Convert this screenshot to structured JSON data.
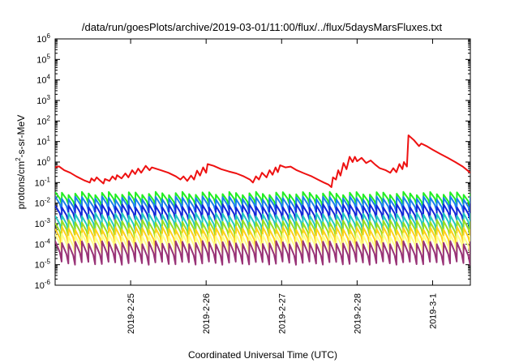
{
  "chart_data": {
    "type": "line",
    "title": "/data/run/goesPlots/archive/2019-03-01/11:00/flux/../flux/5daysMarsFluxes.txt",
    "xlabel": "Coordinated Universal Time (UTC)",
    "ylabel": {
      "base": "protons/cm",
      "sup": "2",
      "rest": "-s-sr-MeV"
    },
    "y_scale": "log",
    "ylim_exponents": [
      -6,
      6
    ],
    "y_ticks": [
      {
        "base": "10",
        "exp": "6"
      },
      {
        "base": "10",
        "exp": "5"
      },
      {
        "base": "10",
        "exp": "4"
      },
      {
        "base": "10",
        "exp": "3"
      },
      {
        "base": "10",
        "exp": "2"
      },
      {
        "base": "10",
        "exp": "1"
      },
      {
        "base": "10",
        "exp": "0"
      },
      {
        "base": "10",
        "exp": "-1"
      },
      {
        "base": "10",
        "exp": "-2"
      },
      {
        "base": "10",
        "exp": "-3"
      },
      {
        "base": "10",
        "exp": "-4"
      },
      {
        "base": "10",
        "exp": "-5"
      },
      {
        "base": "10",
        "exp": "-6"
      }
    ],
    "x_range_days": [
      0,
      5.5
    ],
    "x_ticks": [
      {
        "label": "2019-2-25",
        "day": 1
      },
      {
        "label": "2019-2-26",
        "day": 2
      },
      {
        "label": "2019-2-27",
        "day": 3
      },
      {
        "label": "2019-2-28",
        "day": 4
      },
      {
        "label": "2019-3-1",
        "day": 5
      }
    ],
    "grid": false,
    "legend": "none",
    "series": [
      {
        "color": "#ee1111",
        "points": [
          [
            0.0,
            0.55
          ],
          [
            0.05,
            0.62
          ],
          [
            0.12,
            0.4
          ],
          [
            0.2,
            0.3
          ],
          [
            0.28,
            0.2
          ],
          [
            0.38,
            0.13
          ],
          [
            0.46,
            0.1
          ],
          [
            0.48,
            0.16
          ],
          [
            0.52,
            0.12
          ],
          [
            0.55,
            0.18
          ],
          [
            0.6,
            0.12
          ],
          [
            0.64,
            0.09
          ],
          [
            0.66,
            0.15
          ],
          [
            0.72,
            0.12
          ],
          [
            0.76,
            0.2
          ],
          [
            0.8,
            0.14
          ],
          [
            0.82,
            0.23
          ],
          [
            0.88,
            0.16
          ],
          [
            0.93,
            0.28
          ],
          [
            0.97,
            0.18
          ],
          [
            1.02,
            0.4
          ],
          [
            1.06,
            0.26
          ],
          [
            1.1,
            0.48
          ],
          [
            1.14,
            0.3
          ],
          [
            1.2,
            0.65
          ],
          [
            1.25,
            0.4
          ],
          [
            1.28,
            0.55
          ],
          [
            1.4,
            0.4
          ],
          [
            1.5,
            0.3
          ],
          [
            1.6,
            0.2
          ],
          [
            1.66,
            0.14
          ],
          [
            1.7,
            0.2
          ],
          [
            1.75,
            0.12
          ],
          [
            1.8,
            0.22
          ],
          [
            1.84,
            0.14
          ],
          [
            1.88,
            0.38
          ],
          [
            1.92,
            0.22
          ],
          [
            1.96,
            0.55
          ],
          [
            2.0,
            0.3
          ],
          [
            2.02,
            0.8
          ],
          [
            2.1,
            0.65
          ],
          [
            2.2,
            0.45
          ],
          [
            2.3,
            0.35
          ],
          [
            2.4,
            0.28
          ],
          [
            2.5,
            0.2
          ],
          [
            2.58,
            0.14
          ],
          [
            2.62,
            0.1
          ],
          [
            2.66,
            0.2
          ],
          [
            2.7,
            0.14
          ],
          [
            2.74,
            0.3
          ],
          [
            2.8,
            0.18
          ],
          [
            2.84,
            0.4
          ],
          [
            2.88,
            0.24
          ],
          [
            2.92,
            0.55
          ],
          [
            2.95,
            0.32
          ],
          [
            2.98,
            0.7
          ],
          [
            3.05,
            0.55
          ],
          [
            3.12,
            0.6
          ],
          [
            3.2,
            0.4
          ],
          [
            3.3,
            0.28
          ],
          [
            3.4,
            0.2
          ],
          [
            3.48,
            0.14
          ],
          [
            3.56,
            0.1
          ],
          [
            3.62,
            0.08
          ],
          [
            3.66,
            0.06
          ],
          [
            3.68,
            0.18
          ],
          [
            3.72,
            0.14
          ],
          [
            3.75,
            0.4
          ],
          [
            3.78,
            0.22
          ],
          [
            3.82,
            0.9
          ],
          [
            3.86,
            0.45
          ],
          [
            3.9,
            1.8
          ],
          [
            3.94,
            1.0
          ],
          [
            3.97,
            1.8
          ],
          [
            4.0,
            1.1
          ],
          [
            4.06,
            1.6
          ],
          [
            4.12,
            0.9
          ],
          [
            4.18,
            1.2
          ],
          [
            4.24,
            0.75
          ],
          [
            4.3,
            0.5
          ],
          [
            4.38,
            0.4
          ],
          [
            4.44,
            0.3
          ],
          [
            4.48,
            0.5
          ],
          [
            4.52,
            0.32
          ],
          [
            4.56,
            0.8
          ],
          [
            4.6,
            0.45
          ],
          [
            4.62,
            1.0
          ],
          [
            4.66,
            0.6
          ],
          [
            4.68,
            20
          ],
          [
            4.75,
            12
          ],
          [
            4.82,
            6
          ],
          [
            4.85,
            8
          ],
          [
            4.92,
            6
          ],
          [
            5.0,
            4
          ],
          [
            5.1,
            2.5
          ],
          [
            5.2,
            1.6
          ],
          [
            5.3,
            1.0
          ],
          [
            5.4,
            0.6
          ],
          [
            5.5,
            0.3
          ]
        ]
      },
      {
        "color": "#22ee22",
        "kind": "saw",
        "high": 0.03,
        "low": 0.008
      },
      {
        "color": "#1a7fee",
        "kind": "saw",
        "high": 0.018,
        "low": 0.004
      },
      {
        "color": "#1428d8",
        "kind": "saw",
        "high": 0.0075,
        "low": 0.0015
      },
      {
        "color": "#22c8c0",
        "kind": "saw",
        "high": 0.0028,
        "low": 0.0005
      },
      {
        "color": "#99dd22",
        "kind": "saw",
        "high": 0.0013,
        "low": 0.00022
      },
      {
        "color": "#ffd01a",
        "kind": "saw",
        "high": 0.0006,
        "low": 9e-05
      },
      {
        "color": "#ffff88",
        "kind": "saw",
        "high": 0.00028,
        "low": 4e-05
      },
      {
        "color": "#993377",
        "kind": "saw",
        "high": 0.00012,
        "low": 1.2e-05
      }
    ]
  }
}
